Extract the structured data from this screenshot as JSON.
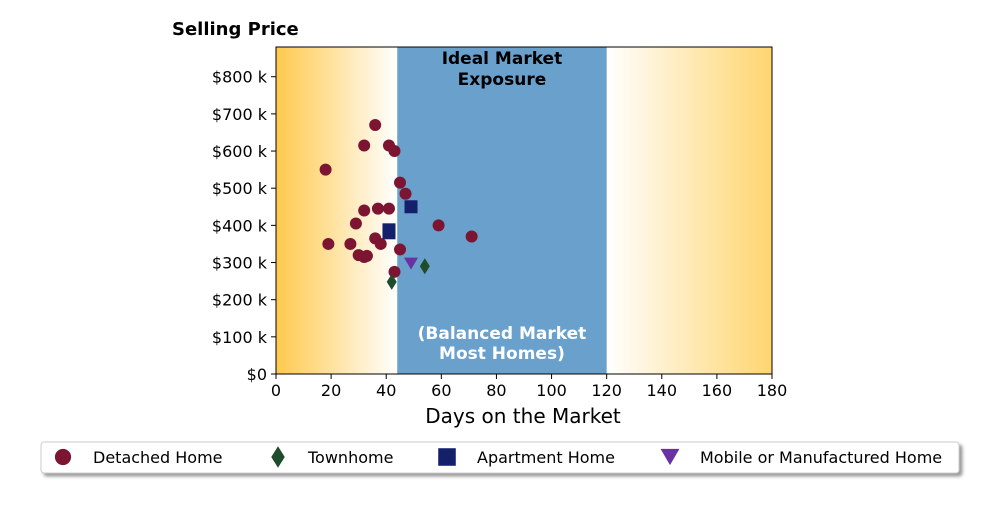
{
  "chart_data": {
    "type": "scatter",
    "ylabel": "Selling Price",
    "xlabel": "Days on the Market",
    "xlim": [
      0,
      180
    ],
    "ylim": [
      0,
      880000
    ],
    "x_ticks": [
      0,
      20,
      40,
      60,
      80,
      100,
      120,
      140,
      160,
      180
    ],
    "x_tick_labels": [
      "0",
      "20",
      "40",
      "60",
      "80",
      "100",
      "120",
      "140",
      "160",
      "180"
    ],
    "y_ticks": [
      0,
      100000,
      200000,
      300000,
      400000,
      500000,
      600000,
      700000,
      800000
    ],
    "y_tick_labels": [
      "$0",
      "$100 k",
      "$200 k",
      "$300 k",
      "$400 k",
      "$500 k",
      "$600 k",
      "$700 k",
      "$800 k"
    ],
    "grid": false,
    "band": {
      "x_start": 44,
      "x_end": 120,
      "color": "#6aa0cc",
      "label_top_line1": "Ideal Market",
      "label_top_line2": "Exposure",
      "label_bottom_line1": "(Balanced Market",
      "label_bottom_line2": "Most Homes)"
    },
    "background_gradient_color": "#ffc94d",
    "legend_placement": "bottom",
    "series": [
      {
        "name": "Detached Home",
        "marker": "circle",
        "color": "#7b1532",
        "points": [
          [
            18,
            550000
          ],
          [
            19,
            350000
          ],
          [
            27,
            350000
          ],
          [
            29,
            405000
          ],
          [
            30,
            320000
          ],
          [
            32,
            440000
          ],
          [
            32,
            615000
          ],
          [
            32,
            315000
          ],
          [
            33,
            318000
          ],
          [
            36,
            670000
          ],
          [
            36,
            365000
          ],
          [
            37,
            445000
          ],
          [
            38,
            350000
          ],
          [
            41,
            615000
          ],
          [
            41,
            445000
          ],
          [
            43,
            600000
          ],
          [
            43,
            275000
          ],
          [
            45,
            515000
          ],
          [
            45,
            335000
          ],
          [
            47,
            485000
          ],
          [
            59,
            400000
          ],
          [
            71,
            370000
          ]
        ]
      },
      {
        "name": "Townhome",
        "marker": "diamond",
        "color": "#1f4d2b",
        "points": [
          [
            42,
            248000
          ],
          [
            54,
            290000
          ]
        ]
      },
      {
        "name": "Apartment Home",
        "marker": "square",
        "color": "#15206b",
        "points": [
          [
            41,
            388000
          ],
          [
            41,
            380000
          ],
          [
            49,
            450000
          ]
        ]
      },
      {
        "name": "Mobile or Manufactured Home",
        "marker": "triangle-down",
        "color": "#6a32a0",
        "points": [
          [
            49,
            297000
          ]
        ]
      }
    ]
  }
}
